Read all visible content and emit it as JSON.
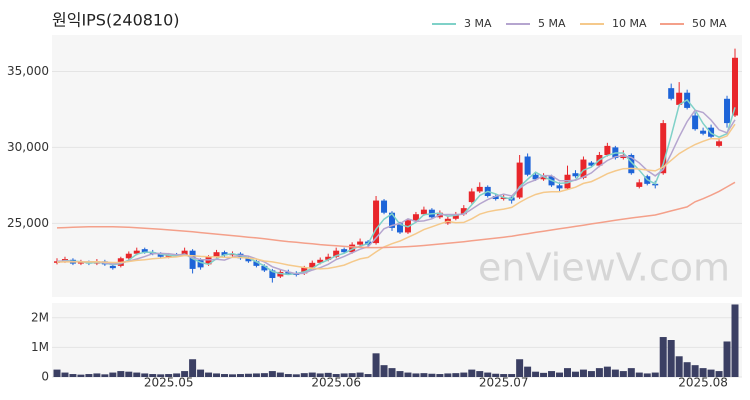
{
  "chart_data": [
    {
      "type": "candlestick",
      "title": "원익IPS(240810)",
      "watermark": "enViewV.com",
      "up_color": "#e8262b",
      "down_color": "#1d64d8",
      "open": [
        22400,
        22500,
        22600,
        22350,
        22450,
        22350,
        22500,
        22200,
        22200,
        22700,
        23000,
        23300,
        23100,
        23000,
        22800,
        22900,
        22900,
        23200,
        22600,
        22300,
        22800,
        23100,
        22900,
        23000,
        22700,
        22500,
        22200,
        21900,
        21500,
        21800,
        21700,
        21700,
        22100,
        22400,
        22600,
        22800,
        23300,
        23100,
        23600,
        23800,
        23700,
        26500,
        25700,
        25000,
        24400,
        25200,
        25600,
        25900,
        25400,
        25000,
        25300,
        25600,
        26400,
        27100,
        27400,
        26800,
        26600,
        26700,
        26700,
        29400,
        28200,
        27900,
        28100,
        27500,
        27300,
        28300,
        28000,
        29000,
        28800,
        29500,
        30000,
        29300,
        29500,
        27400,
        28100,
        27600,
        28300,
        33900,
        32800,
        33600,
        32100,
        31100,
        31300,
        30100,
        33200,
        32100
      ],
      "high": [
        22700,
        22800,
        22700,
        22600,
        22550,
        22650,
        22600,
        22300,
        22800,
        23150,
        23400,
        23400,
        23250,
        23100,
        23050,
        23050,
        23400,
        23300,
        22700,
        22900,
        23250,
        23200,
        23150,
        23100,
        22850,
        22600,
        22300,
        22000,
        21950,
        21950,
        21850,
        22200,
        22550,
        22750,
        23000,
        23400,
        23400,
        23750,
        24000,
        23900,
        26800,
        26600,
        25800,
        25100,
        25300,
        25750,
        26100,
        26000,
        25850,
        25450,
        25750,
        26200,
        27300,
        27700,
        27500,
        26950,
        26900,
        26800,
        29500,
        29600,
        28400,
        28300,
        28200,
        27700,
        28800,
        28500,
        29400,
        29100,
        29700,
        30300,
        30100,
        29800,
        29600,
        27900,
        28200,
        27800,
        31800,
        34200,
        34300,
        33800,
        32300,
        31300,
        31500,
        30600,
        33400,
        36500
      ],
      "low": [
        22300,
        22400,
        22250,
        22250,
        22250,
        22250,
        22200,
        21950,
        22100,
        22600,
        22900,
        23000,
        22900,
        22700,
        22700,
        22750,
        22850,
        21700,
        21950,
        22200,
        22700,
        22800,
        22800,
        22600,
        22400,
        22100,
        21800,
        21100,
        21400,
        21600,
        21500,
        21600,
        22000,
        22300,
        22500,
        22700,
        23000,
        23000,
        23500,
        23500,
        23600,
        25600,
        24500,
        24300,
        24300,
        25100,
        25500,
        25300,
        25300,
        24900,
        25200,
        25500,
        26300,
        27000,
        26700,
        26500,
        26500,
        26300,
        26600,
        28100,
        27800,
        27800,
        27400,
        27100,
        27200,
        28000,
        27900,
        28700,
        28700,
        29400,
        29200,
        29200,
        28200,
        27300,
        27500,
        27300,
        28200,
        33100,
        32700,
        32500,
        31100,
        30800,
        30600,
        30000,
        31300,
        32000
      ],
      "close": [
        22500,
        22650,
        22350,
        22450,
        22350,
        22500,
        22300,
        22050,
        22700,
        23000,
        23200,
        23100,
        23000,
        22800,
        22900,
        22850,
        23200,
        22000,
        22100,
        22800,
        23100,
        22900,
        23000,
        22700,
        22500,
        22200,
        21900,
        21400,
        21800,
        21700,
        21600,
        22100,
        22400,
        22600,
        22800,
        23200,
        23100,
        23600,
        23800,
        23600,
        26500,
        25700,
        24700,
        24400,
        25200,
        25600,
        25900,
        25400,
        25700,
        25300,
        25600,
        26000,
        27100,
        27400,
        26800,
        26600,
        26700,
        26500,
        29000,
        28200,
        27900,
        28100,
        27500,
        27300,
        28200,
        28100,
        29200,
        28800,
        29500,
        30100,
        29300,
        29500,
        28300,
        27700,
        27600,
        27500,
        31600,
        33200,
        33600,
        32600,
        31200,
        30900,
        30700,
        30400,
        31600,
        35900
      ],
      "series": [
        {
          "name": "3 MA",
          "color": "#7fd1c8",
          "values": [
            22450,
            22550,
            22500,
            22480,
            22380,
            22430,
            22380,
            22280,
            22350,
            22580,
            22970,
            23100,
            23100,
            22970,
            22900,
            22850,
            22980,
            22680,
            22430,
            22300,
            22670,
            22930,
            23000,
            22870,
            22730,
            22470,
            22200,
            21830,
            21700,
            21630,
            21700,
            21800,
            22030,
            22370,
            22600,
            22870,
            23030,
            23300,
            23500,
            23670,
            24630,
            25270,
            25630,
            24930,
            24770,
            25070,
            25570,
            25630,
            25670,
            25470,
            25530,
            25630,
            26230,
            26830,
            27100,
            26930,
            26700,
            26600,
            27400,
            27900,
            28370,
            28070,
            27830,
            27630,
            27670,
            27870,
            28500,
            28700,
            29170,
            29470,
            29630,
            29630,
            29030,
            28500,
            27870,
            27600,
            28900,
            30770,
            32800,
            33130,
            32470,
            31570,
            30930,
            30670,
            30900,
            32630
          ]
        },
        {
          "name": "5 MA",
          "color": "#b5a5cf",
          "values": [
            22500,
            22520,
            22480,
            22460,
            22470,
            22460,
            22390,
            22330,
            22380,
            22510,
            22650,
            22810,
            23000,
            23020,
            23000,
            22930,
            22950,
            22750,
            22610,
            22590,
            22640,
            22580,
            22780,
            22900,
            22840,
            22660,
            22460,
            22140,
            21960,
            21800,
            21680,
            21720,
            21920,
            22080,
            22300,
            22620,
            22820,
            23060,
            23300,
            23460,
            24040,
            24640,
            24860,
            24980,
            25300,
            25120,
            25160,
            25300,
            25560,
            25580,
            25580,
            25600,
            25940,
            26280,
            26560,
            26780,
            26920,
            26800,
            27320,
            27660,
            27860,
            28140,
            28140,
            27800,
            27800,
            27840,
            28060,
            28320,
            28760,
            29140,
            29380,
            29440,
            29340,
            28980,
            28480,
            28120,
            28540,
            29580,
            30700,
            31700,
            32440,
            32300,
            31800,
            31160,
            30960,
            31820
          ]
        },
        {
          "name": "10 MA",
          "color": "#f5c98b",
          "values": [
            22450,
            22460,
            22460,
            22460,
            22460,
            22470,
            22450,
            22420,
            22430,
            22490,
            22560,
            22600,
            22670,
            22710,
            22760,
            22790,
            22880,
            22870,
            22820,
            22800,
            22790,
            22770,
            22760,
            22750,
            22710,
            22650,
            22520,
            22460,
            22370,
            22260,
            22170,
            22090,
            22040,
            22000,
            22030,
            22130,
            22250,
            22470,
            22660,
            22760,
            23120,
            23450,
            23660,
            23840,
            24080,
            24320,
            24590,
            24770,
            24960,
            25130,
            25040,
            25060,
            25300,
            25600,
            25760,
            25860,
            25940,
            26050,
            26380,
            26670,
            26900,
            27040,
            27080,
            27080,
            27230,
            27380,
            27630,
            27750,
            28000,
            28270,
            28450,
            28600,
            28620,
            28570,
            28510,
            28450,
            28710,
            29150,
            29590,
            29900,
            30190,
            30400,
            30580,
            30560,
            30760,
            31530
          ]
        },
        {
          "name": "50 MA",
          "color": "#f4a08a",
          "values": [
            24700,
            24720,
            24740,
            24760,
            24770,
            24780,
            24780,
            24770,
            24760,
            24740,
            24710,
            24680,
            24650,
            24610,
            24570,
            24530,
            24490,
            24440,
            24390,
            24340,
            24290,
            24240,
            24190,
            24140,
            24090,
            24040,
            23980,
            23920,
            23860,
            23800,
            23750,
            23700,
            23650,
            23600,
            23560,
            23520,
            23480,
            23450,
            23420,
            23400,
            23400,
            23410,
            23420,
            23440,
            23470,
            23500,
            23540,
            23590,
            23640,
            23690,
            23740,
            23790,
            23850,
            23910,
            23970,
            24030,
            24090,
            24150,
            24240,
            24320,
            24400,
            24480,
            24560,
            24640,
            24720,
            24800,
            24880,
            24960,
            25040,
            25120,
            25200,
            25280,
            25350,
            25420,
            25480,
            25550,
            25680,
            25820,
            25950,
            26080,
            26420,
            26620,
            26850,
            27100,
            27400,
            27700
          ]
        }
      ],
      "ylim": [
        20150,
        37400
      ],
      "yticks": [
        {
          "value": 25000,
          "label": "25,000"
        },
        {
          "value": 30000,
          "label": "30,000"
        },
        {
          "value": 35000,
          "label": "35,000"
        }
      ],
      "grid": true,
      "legend": "top-right"
    },
    {
      "type": "bar",
      "color": "#3b3f63",
      "categories": [
        null,
        null,
        null,
        null,
        null,
        null,
        null,
        null,
        null,
        null,
        null,
        null,
        null,
        null,
        "2025.05",
        null,
        null,
        null,
        null,
        null,
        null,
        null,
        null,
        null,
        null,
        null,
        null,
        null,
        null,
        null,
        null,
        null,
        null,
        null,
        null,
        "2025.06",
        null,
        null,
        null,
        null,
        null,
        null,
        null,
        null,
        null,
        null,
        null,
        null,
        null,
        null,
        null,
        null,
        null,
        null,
        null,
        null,
        "2025.07",
        null,
        null,
        null,
        null,
        null,
        null,
        null,
        null,
        null,
        null,
        null,
        null,
        null,
        null,
        null,
        null,
        null,
        null,
        null,
        null,
        null,
        null,
        null,
        null,
        "2025.08",
        null,
        null,
        null,
        null
      ],
      "values": [
        250000,
        150000,
        100000,
        80000,
        100000,
        120000,
        90000,
        150000,
        200000,
        180000,
        150000,
        120000,
        100000,
        90000,
        100000,
        120000,
        200000,
        600000,
        250000,
        150000,
        120000,
        100000,
        90000,
        100000,
        110000,
        120000,
        130000,
        200000,
        150000,
        100000,
        90000,
        130000,
        150000,
        120000,
        140000,
        100000,
        120000,
        130000,
        150000,
        100000,
        800000,
        400000,
        300000,
        200000,
        150000,
        120000,
        130000,
        110000,
        100000,
        120000,
        130000,
        150000,
        250000,
        200000,
        150000,
        110000,
        100000,
        100000,
        600000,
        350000,
        180000,
        140000,
        200000,
        150000,
        300000,
        180000,
        250000,
        200000,
        300000,
        350000,
        250000,
        200000,
        300000,
        150000,
        120000,
        150000,
        1350000,
        1250000,
        700000,
        500000,
        400000,
        300000,
        250000,
        200000,
        1200000,
        2450000
      ],
      "ylim": [
        0,
        2500000
      ],
      "yticks": [
        0,
        {
          "value": 1000000,
          "label": "1M"
        },
        {
          "value": 2000000,
          "label": "2M"
        }
      ],
      "grid": true
    }
  ]
}
